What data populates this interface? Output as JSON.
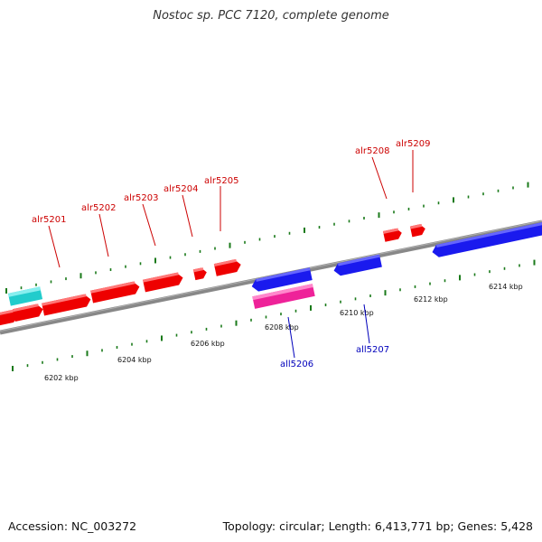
{
  "title": "Nostoc sp. PCC 7120, complete genome",
  "footer": {
    "accession": "Accession: NC_003272",
    "info": "Topology: circular; Length: 6,413,771 bp; Genes: 5,428"
  },
  "colors": {
    "forward": "#ff0000",
    "reverse": "#1a1aee",
    "rna": "#22cccc",
    "pseudo": "#ee2299",
    "backbone": "#888888",
    "ticks": "#1a7a1a",
    "forward_label": "#cc0000",
    "reverse_label": "#0000bb"
  },
  "scale_labels": [
    "6202 kbp",
    "6204 kbp",
    "6206 kbp",
    "6208 kbp",
    "6210 kbp",
    "6212 kbp",
    "6214 kbp"
  ],
  "forward_genes": [
    "alr5201",
    "alr5202",
    "alr5203",
    "alr5204",
    "alr5205",
    "alr5208",
    "alr5209"
  ],
  "reverse_genes": [
    "all5206",
    "all5207"
  ]
}
